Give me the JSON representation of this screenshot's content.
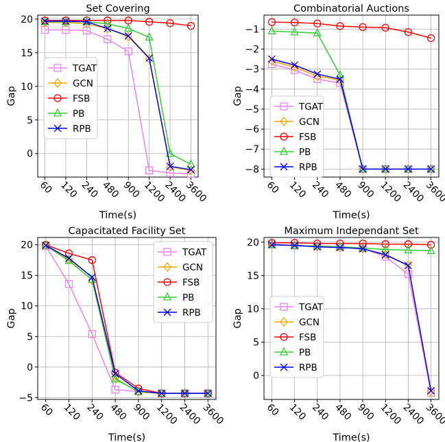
{
  "figure": {
    "background": "#ffffff"
  },
  "chart_data": [
    {
      "type": "line",
      "title": "Set Covering",
      "xlabel": "Time(s)",
      "ylabel": "Gap",
      "categories": [
        "60",
        "120",
        "240",
        "480",
        "900",
        "1200",
        "2400",
        "3600"
      ],
      "ylim": [
        -3.5,
        20.6
      ],
      "yticks": [
        0,
        5,
        10,
        15,
        20
      ],
      "grid": true,
      "legend": "center-left",
      "series": [
        {
          "name": "TGAT",
          "color": "#ee82ee",
          "marker": "square",
          "values": [
            18.4,
            18.4,
            18.3,
            17.0,
            15.2,
            -2.5,
            -2.9,
            -3.0
          ]
        },
        {
          "name": "GCN",
          "color": "#ffa500",
          "marker": "diamond",
          "values": [
            19.5,
            19.5,
            19.3,
            18.6,
            17.4,
            14.1,
            -2.0,
            -2.5
          ]
        },
        {
          "name": "FSB",
          "color": "#ff0000",
          "marker": "circle",
          "values": [
            19.8,
            19.8,
            19.8,
            19.8,
            19.8,
            19.6,
            19.4,
            19.0
          ]
        },
        {
          "name": "PB",
          "color": "#32cd32",
          "marker": "triangle",
          "values": [
            19.6,
            19.6,
            19.6,
            19.3,
            18.6,
            17.3,
            0.0,
            -1.6
          ]
        },
        {
          "name": "RPB",
          "color": "#0000ff",
          "marker": "x",
          "values": [
            19.7,
            19.7,
            19.6,
            18.6,
            17.5,
            14.2,
            -1.9,
            -2.4
          ]
        }
      ]
    },
    {
      "type": "line",
      "title": "Combinatorial Auctions",
      "xlabel": "Time(s)",
      "ylabel": "Gap",
      "categories": [
        "60",
        "120",
        "240",
        "480",
        "900",
        "1200",
        "2400",
        "3600"
      ],
      "ylim": [
        -8.4,
        -0.3
      ],
      "yticks": [
        -8,
        -7,
        -6,
        -5,
        -4,
        -3,
        -2,
        -1
      ],
      "grid": true,
      "legend": "lower-left",
      "series": [
        {
          "name": "TGAT",
          "color": "#ee82ee",
          "marker": "square",
          "values": [
            -2.75,
            -3.05,
            -3.5,
            -3.7,
            -8.0,
            -8.0,
            -8.0,
            -8.0
          ]
        },
        {
          "name": "GCN",
          "color": "#ffa500",
          "marker": "diamond",
          "values": [
            -2.6,
            -2.9,
            -3.35,
            -3.55,
            -8.0,
            -8.0,
            -8.0,
            -8.0
          ]
        },
        {
          "name": "FSB",
          "color": "#ff0000",
          "marker": "circle",
          "values": [
            -0.65,
            -0.67,
            -0.72,
            -0.85,
            -0.9,
            -0.93,
            -1.15,
            -1.45
          ]
        },
        {
          "name": "PB",
          "color": "#32cd32",
          "marker": "triangle",
          "values": [
            -1.1,
            -1.15,
            -1.2,
            -3.3,
            -8.0,
            -8.0,
            -8.0,
            -8.0
          ]
        },
        {
          "name": "RPB",
          "color": "#0000ff",
          "marker": "x",
          "values": [
            -2.5,
            -2.8,
            -3.25,
            -3.5,
            -8.0,
            -8.0,
            -8.0,
            -8.0
          ]
        }
      ]
    },
    {
      "type": "line",
      "title": "Capacitated Facility Set",
      "xlabel": "Time(s)",
      "ylabel": "Gap",
      "categories": [
        "60",
        "120",
        "240",
        "480",
        "900",
        "1200",
        "2400",
        "3600"
      ],
      "ylim": [
        -5.3,
        21.2
      ],
      "yticks": [
        -5,
        0,
        5,
        10,
        15,
        20
      ],
      "grid": true,
      "legend": "upper-right",
      "series": [
        {
          "name": "TGAT",
          "color": "#ee82ee",
          "marker": "square",
          "values": [
            19.8,
            13.6,
            5.4,
            -3.7,
            -4.0,
            -4.3,
            -4.3,
            -4.3
          ]
        },
        {
          "name": "GCN",
          "color": "#ffa500",
          "marker": "diamond",
          "values": [
            19.9,
            17.6,
            14.2,
            -1.8,
            -4.1,
            -4.3,
            -4.3,
            -4.3
          ]
        },
        {
          "name": "FSB",
          "color": "#ff0000",
          "marker": "circle",
          "values": [
            20.0,
            18.6,
            17.5,
            -0.9,
            -3.5,
            -4.3,
            -4.3,
            -4.3
          ]
        },
        {
          "name": "PB",
          "color": "#32cd32",
          "marker": "triangle",
          "values": [
            19.9,
            17.4,
            14.3,
            -2.0,
            -4.0,
            -4.3,
            -4.3,
            -4.3
          ]
        },
        {
          "name": "RPB",
          "color": "#0000ff",
          "marker": "x",
          "values": [
            19.9,
            17.8,
            14.7,
            -1.1,
            -3.9,
            -4.3,
            -4.3,
            -4.3
          ]
        }
      ]
    },
    {
      "type": "line",
      "title": "Maximum Independant Set",
      "xlabel": "Time(s)",
      "ylabel": "Gap",
      "categories": [
        "60",
        "120",
        "240",
        "480",
        "900",
        "1200",
        "2400",
        "3600"
      ],
      "ylim": [
        -3.6,
        20.7
      ],
      "yticks": [
        0,
        5,
        10,
        15,
        20
      ],
      "grid": true,
      "legend": "lower-left",
      "series": [
        {
          "name": "TGAT",
          "color": "#ee82ee",
          "marker": "square",
          "values": [
            19.7,
            19.5,
            19.4,
            19.3,
            19.1,
            17.8,
            15.2,
            -2.6
          ]
        },
        {
          "name": "GCN",
          "color": "#ffa500",
          "marker": "diamond",
          "values": [
            19.6,
            19.5,
            19.3,
            19.2,
            19.0,
            18.2,
            16.5,
            -2.4
          ]
        },
        {
          "name": "FSB",
          "color": "#ff0000",
          "marker": "circle",
          "values": [
            19.9,
            19.9,
            19.8,
            19.8,
            19.8,
            19.7,
            19.7,
            19.6
          ]
        },
        {
          "name": "PB",
          "color": "#32cd32",
          "marker": "triangle",
          "values": [
            19.6,
            19.5,
            19.4,
            19.3,
            19.1,
            18.9,
            18.8,
            18.7
          ]
        },
        {
          "name": "RPB",
          "color": "#0000ff",
          "marker": "x",
          "values": [
            19.6,
            19.5,
            19.3,
            19.2,
            19.0,
            18.1,
            16.5,
            -2.3
          ]
        }
      ]
    }
  ]
}
